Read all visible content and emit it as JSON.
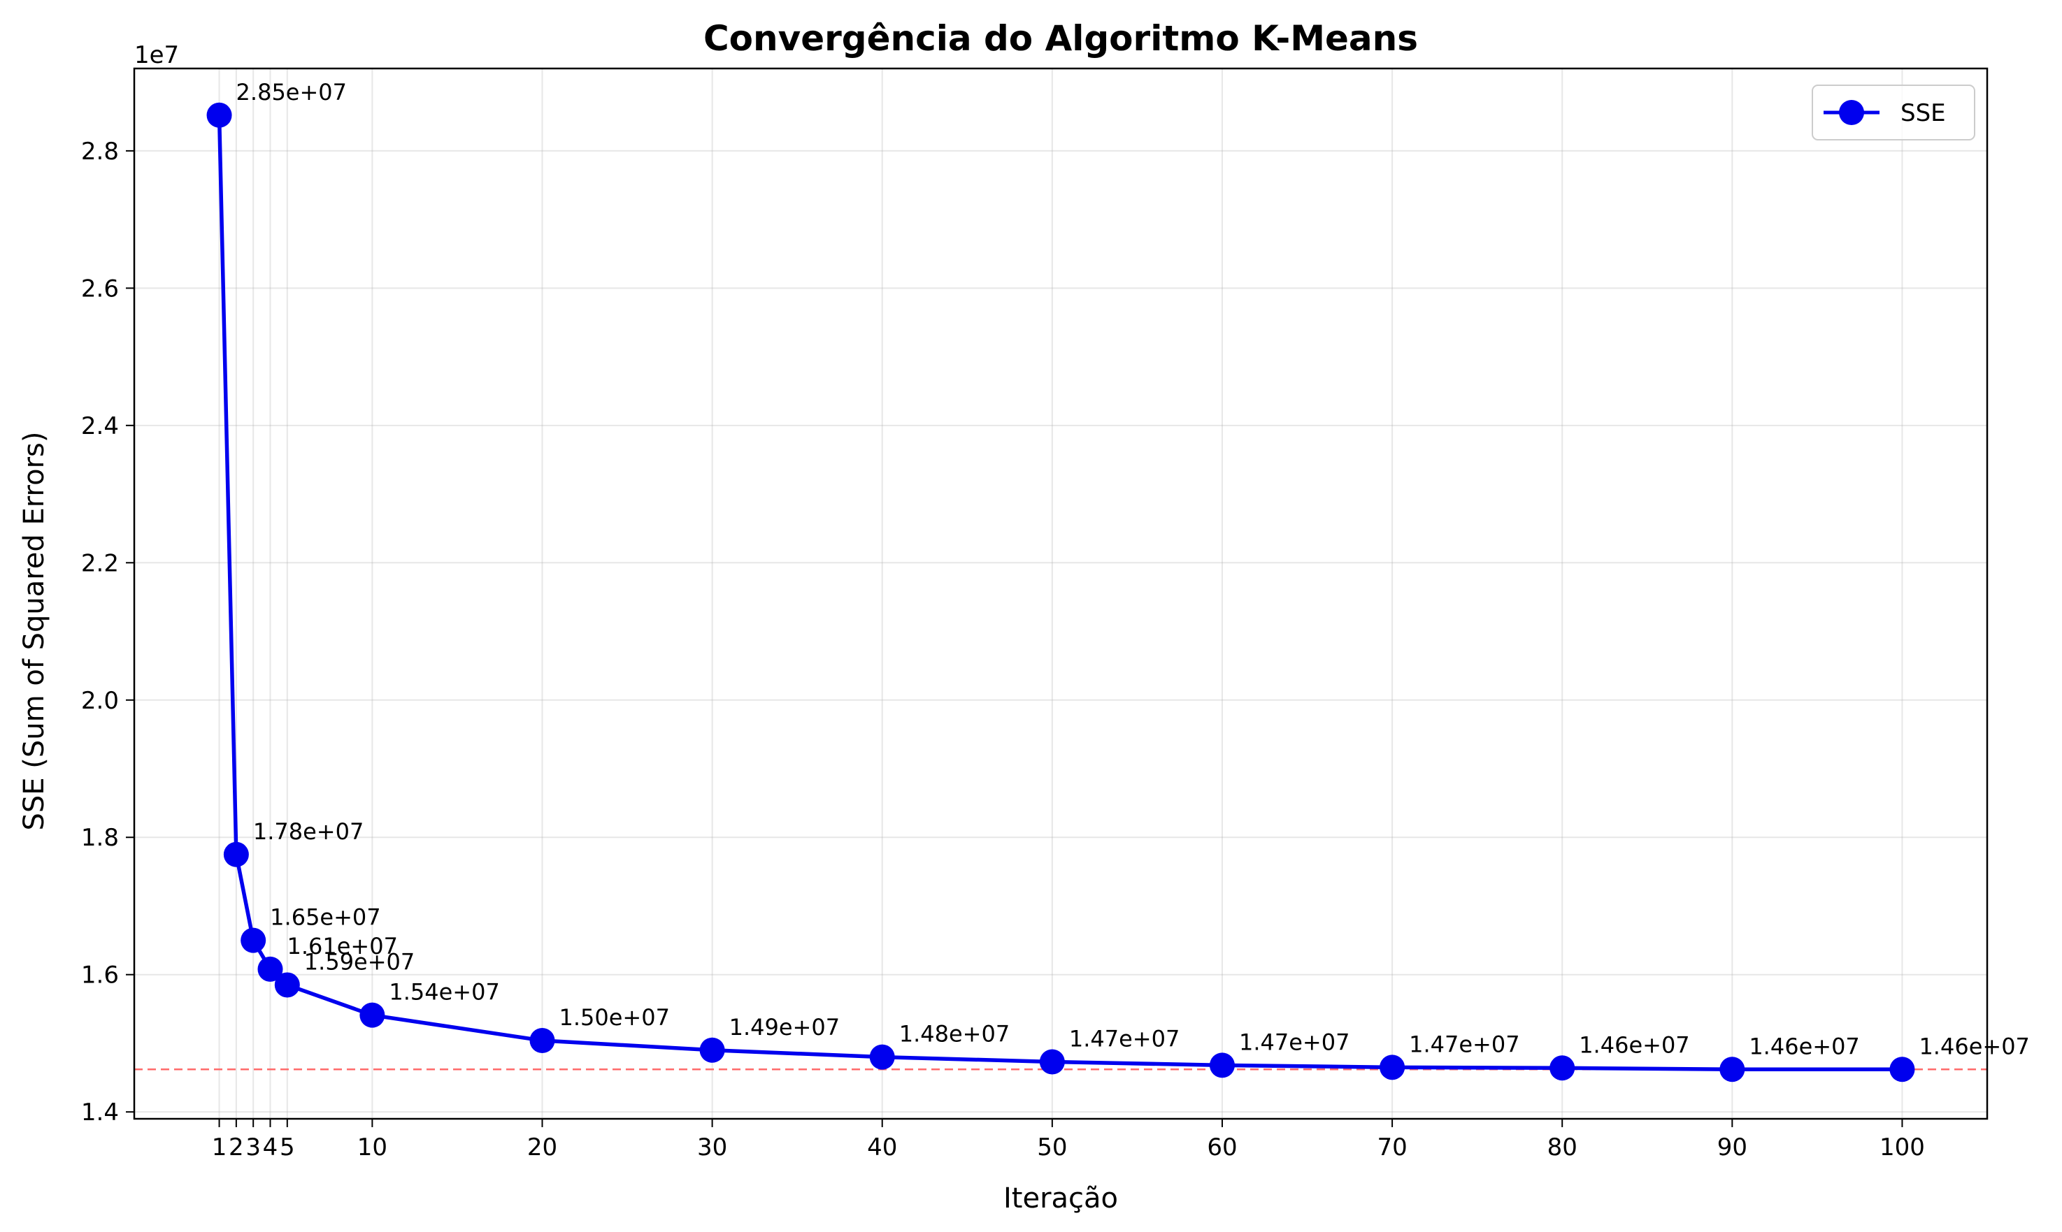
{
  "chart_data": {
    "type": "line",
    "title": "Convergência do Algoritmo K-Means",
    "xlabel": "Iteração",
    "ylabel": "SSE (Sum of Squared Errors)",
    "y_offset_label": "1e7",
    "xlim": [
      -4,
      105
    ],
    "ylim": [
      13.9,
      29.2
    ],
    "x_ticks": [
      1,
      2,
      3,
      4,
      5,
      10,
      20,
      30,
      40,
      50,
      60,
      70,
      80,
      90,
      100
    ],
    "x_tick_labels": [
      "1",
      "2",
      "3",
      "4",
      "5",
      "10",
      "20",
      "30",
      "40",
      "50",
      "60",
      "70",
      "80",
      "90",
      "100"
    ],
    "y_ticks": [
      14,
      16,
      18,
      20,
      22,
      24,
      26,
      28
    ],
    "y_tick_labels": [
      "1.4",
      "1.6",
      "1.8",
      "2.0",
      "2.2",
      "2.4",
      "2.6",
      "2.8"
    ],
    "grid": true,
    "legend_position": "top-right",
    "series": [
      {
        "name": "SSE",
        "color": "#0000ee",
        "marker": "circle",
        "x": [
          1,
          2,
          3,
          4,
          5,
          10,
          20,
          30,
          40,
          50,
          60,
          70,
          80,
          90,
          100
        ],
        "values": [
          28.52,
          17.75,
          16.5,
          16.08,
          15.85,
          15.41,
          15.04,
          14.9,
          14.8,
          14.73,
          14.68,
          14.65,
          14.64,
          14.62,
          14.62
        ],
        "labels": [
          "2.85e+07",
          "1.78e+07",
          "1.65e+07",
          "1.61e+07",
          "1.59e+07",
          "1.54e+07",
          "1.50e+07",
          "1.49e+07",
          "1.48e+07",
          "1.47e+07",
          "1.47e+07",
          "1.47e+07",
          "1.46e+07",
          "1.46e+07",
          "1.46e+07"
        ]
      }
    ],
    "reference_line": {
      "y": 14.62,
      "color": "#ff6b6b",
      "style": "dashed"
    }
  }
}
